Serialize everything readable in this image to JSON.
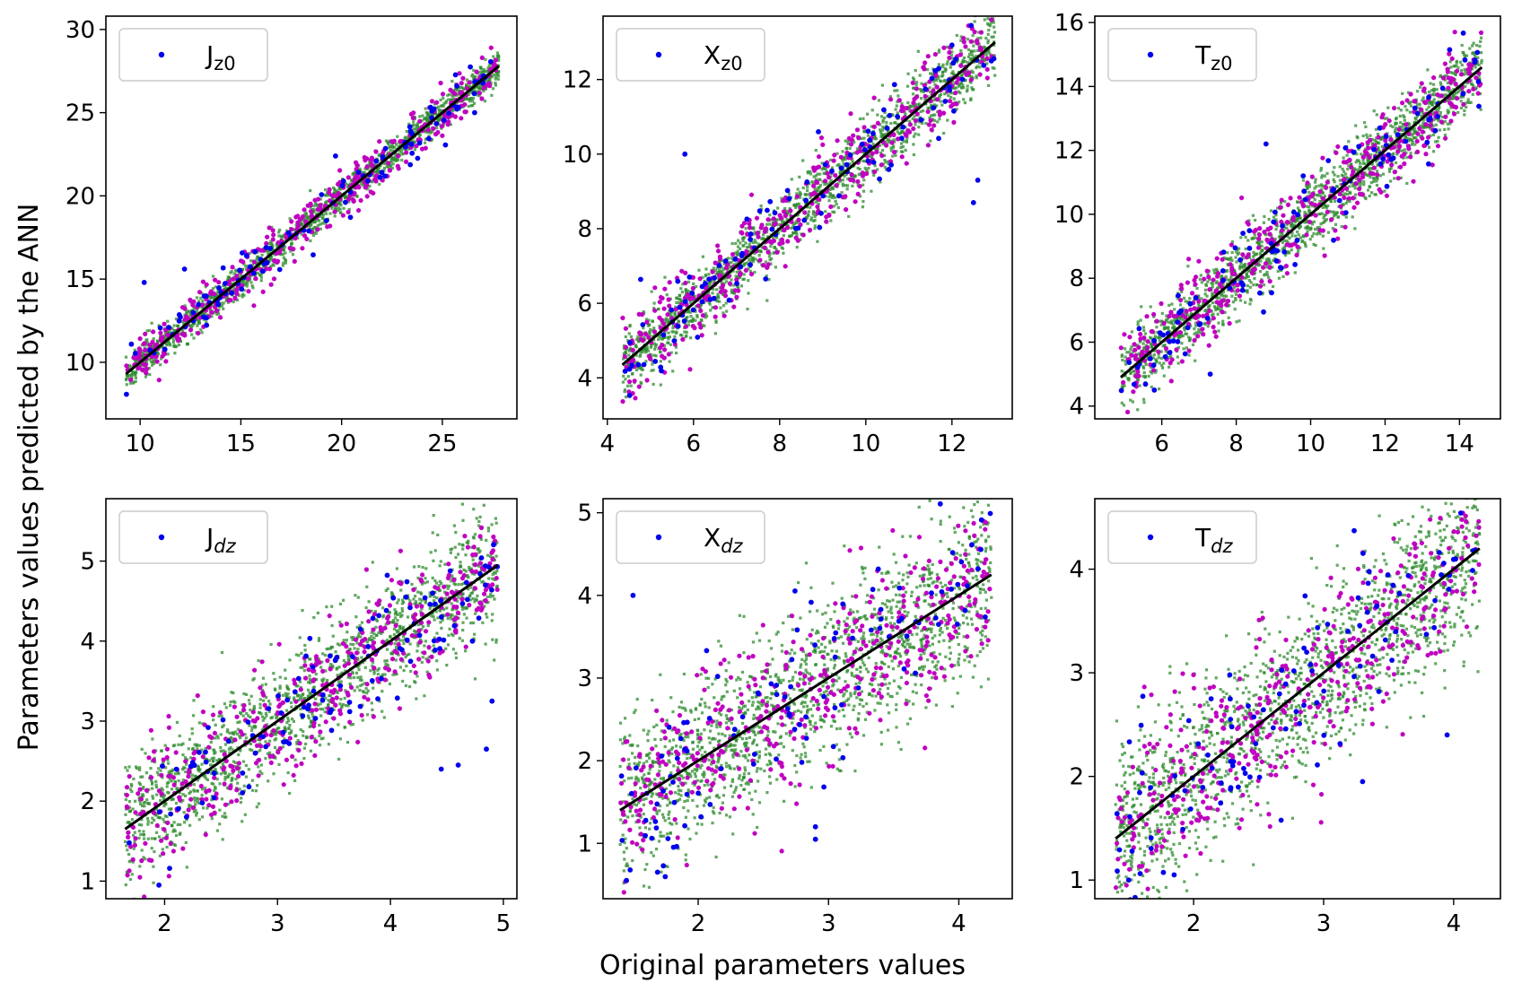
{
  "figure": {
    "ylabel": "Parameters values predicted by the ANN",
    "xlabel": "Original parameters values"
  },
  "colors": {
    "series_blue": "#0000ee",
    "series_magenta": "#c000c0",
    "series_green": "#2e8b2e",
    "fit_line": "#000000"
  },
  "chart_data": [
    {
      "type": "scatter",
      "legend": {
        "base": "J",
        "sub": "z0",
        "sub_italic": false
      },
      "xlim": [
        8.3,
        28.7
      ],
      "ylim": [
        6.6,
        30.8
      ],
      "xticks": [
        10,
        15,
        20,
        25
      ],
      "yticks": [
        10,
        15,
        20,
        25,
        30
      ],
      "x_range": [
        9.3,
        27.8
      ],
      "fit": {
        "x0": 9.3,
        "y0": 9.3,
        "x1": 27.8,
        "y1": 27.8
      },
      "noise": [
        0.5,
        0.7,
        0.6
      ],
      "seed": 11,
      "blue_outliers": [
        [
          10.2,
          14.8
        ],
        [
          12.2,
          15.6
        ],
        [
          19.7,
          22.4
        ],
        [
          26.6,
          25.0
        ]
      ]
    },
    {
      "type": "scatter",
      "legend": {
        "base": "X",
        "sub": "z0",
        "sub_italic": false
      },
      "xlim": [
        3.9,
        13.4
      ],
      "ylim": [
        2.9,
        13.7
      ],
      "xticks": [
        4,
        6,
        8,
        10,
        12
      ],
      "yticks": [
        4,
        6,
        8,
        10,
        12
      ],
      "x_range": [
        4.35,
        13.0
      ],
      "fit": {
        "x0": 4.35,
        "y0": 4.35,
        "x1": 13.0,
        "y1": 13.0
      },
      "noise": [
        0.45,
        0.55,
        0.5
      ],
      "seed": 23,
      "blue_outliers": [
        [
          5.8,
          10.0
        ],
        [
          8.9,
          10.6
        ],
        [
          12.5,
          8.7
        ],
        [
          12.6,
          9.3
        ]
      ]
    },
    {
      "type": "scatter",
      "legend": {
        "base": "T",
        "sub": "z0",
        "sub_italic": false
      },
      "xlim": [
        4.2,
        15.1
      ],
      "ylim": [
        3.6,
        16.2
      ],
      "xticks": [
        6,
        8,
        10,
        12,
        14
      ],
      "yticks": [
        4,
        6,
        8,
        10,
        12,
        14,
        16
      ],
      "x_range": [
        4.9,
        14.6
      ],
      "fit": {
        "x0": 4.9,
        "y0": 4.9,
        "x1": 14.6,
        "y1": 14.6
      },
      "noise": [
        0.55,
        0.7,
        0.6
      ],
      "seed": 37,
      "blue_outliers": [
        [
          8.8,
          12.2
        ],
        [
          7.3,
          5.0
        ],
        [
          5.8,
          4.5
        ]
      ]
    },
    {
      "type": "scatter",
      "legend": {
        "base": "J",
        "sub": "dz",
        "sub_italic": true
      },
      "xlim": [
        1.48,
        5.12
      ],
      "ylim": [
        0.78,
        5.78
      ],
      "xticks": [
        2,
        3,
        4,
        5
      ],
      "yticks": [
        1,
        2,
        3,
        4,
        5
      ],
      "x_range": [
        1.65,
        4.95
      ],
      "fit": {
        "x0": 1.65,
        "y0": 1.65,
        "x1": 4.95,
        "y1": 4.95
      },
      "noise": [
        0.38,
        0.38,
        0.33
      ],
      "seed": 41,
      "blue_outliers": [
        [
          1.95,
          0.95
        ],
        [
          4.45,
          2.4
        ],
        [
          4.6,
          2.45
        ],
        [
          4.85,
          2.65
        ],
        [
          4.9,
          3.25
        ]
      ]
    },
    {
      "type": "scatter",
      "legend": {
        "base": "X",
        "sub": "dz",
        "sub_italic": true
      },
      "xlim": [
        1.27,
        4.41
      ],
      "ylim": [
        0.33,
        5.17
      ],
      "xticks": [
        2,
        3,
        4
      ],
      "yticks": [
        1,
        2,
        3,
        4,
        5
      ],
      "x_range": [
        1.4,
        4.25
      ],
      "fit": {
        "x0": 1.4,
        "y0": 1.4,
        "x1": 4.25,
        "y1": 4.25
      },
      "noise": [
        0.5,
        0.5,
        0.45
      ],
      "seed": 53,
      "blue_outliers": [
        [
          1.5,
          4.0
        ],
        [
          2.9,
          1.2
        ],
        [
          2.9,
          1.05
        ],
        [
          1.45,
          0.55
        ]
      ]
    },
    {
      "type": "scatter",
      "legend": {
        "base": "T",
        "sub": "dz",
        "sub_italic": true
      },
      "xlim": [
        1.24,
        4.36
      ],
      "ylim": [
        0.82,
        4.68
      ],
      "xticks": [
        2,
        3,
        4
      ],
      "yticks": [
        1,
        2,
        3,
        4
      ],
      "x_range": [
        1.4,
        4.2
      ],
      "fit": {
        "x0": 1.4,
        "y0": 1.4,
        "x1": 4.2,
        "y1": 4.2
      },
      "noise": [
        0.42,
        0.42,
        0.36
      ],
      "seed": 67,
      "blue_outliers": [
        [
          1.5,
          1.0
        ],
        [
          1.85,
          1.05
        ],
        [
          3.3,
          1.95
        ],
        [
          3.95,
          2.4
        ]
      ]
    }
  ]
}
